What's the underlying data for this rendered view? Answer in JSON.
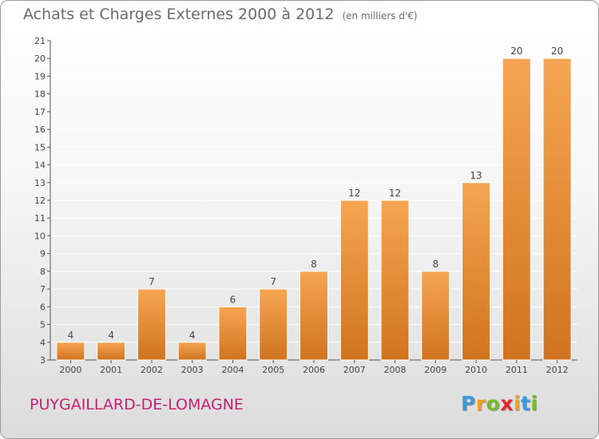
{
  "header": {
    "title": "Achats et Charges Externes 2000 à 2012",
    "unit": "(en milliers d'€)"
  },
  "footer": {
    "commune": "PUYGAILLARD-DE-LOMAGNE",
    "logo_letters": [
      "P",
      "r",
      "o",
      "x",
      "i",
      "t",
      "i"
    ],
    "logo_colors": [
      "#3a9ad9",
      "#f0a01e",
      "#7ab929",
      "#e3262f",
      "#f0a01e",
      "#3a9ad9",
      "#7ab929"
    ]
  },
  "colors": {
    "bar_light": "#f6a552",
    "bar_dark": "#d0741f",
    "axis": "#555555",
    "grid": "#ffffff"
  },
  "chart_data": {
    "type": "bar",
    "categories": [
      "2000",
      "2001",
      "2002",
      "2003",
      "2004",
      "2005",
      "2006",
      "2007",
      "2008",
      "2009",
      "2010",
      "2011",
      "2012"
    ],
    "values": [
      4,
      4,
      7,
      4,
      6,
      7,
      8,
      12,
      12,
      8,
      13,
      20,
      20
    ],
    "ylim": [
      3,
      21
    ],
    "yticks": [
      3,
      4,
      5,
      6,
      7,
      8,
      9,
      10,
      11,
      12,
      13,
      14,
      15,
      16,
      17,
      18,
      19,
      20,
      21
    ],
    "grid": true,
    "legend": "none"
  }
}
